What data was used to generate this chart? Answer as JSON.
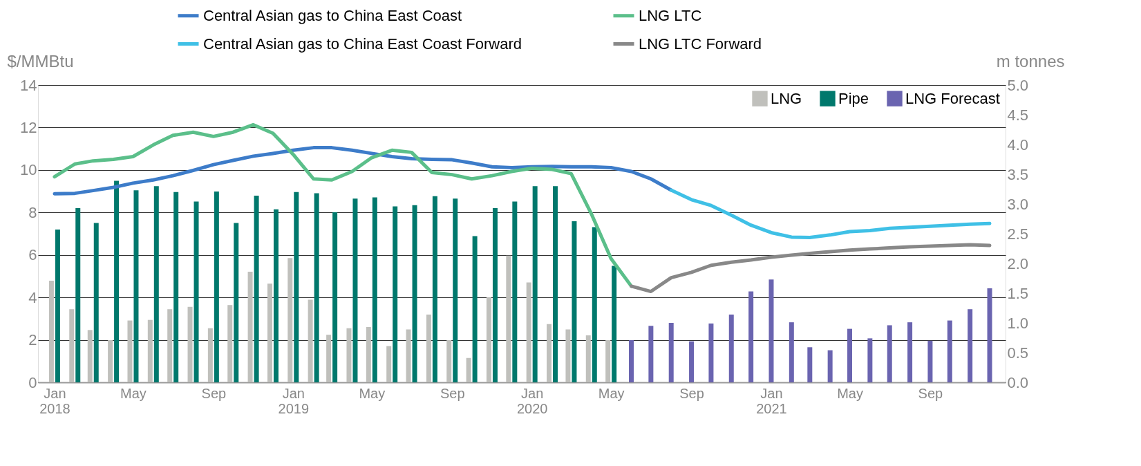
{
  "chart_data": {
    "type": "line",
    "ylabel": "$/MMBtu",
    "y2label": "m tonnes",
    "ylim": [
      0,
      14
    ],
    "yticks": [
      0,
      2,
      4,
      6,
      8,
      10,
      12,
      14
    ],
    "y2lim": [
      0,
      5
    ],
    "y2ticks": [
      {
        "value": 0,
        "label": "0.0"
      },
      {
        "value": 0.5,
        "label": "0.5"
      },
      {
        "value": 1,
        "label": "1.0"
      },
      {
        "value": 1.5,
        "label": "1.5"
      },
      {
        "value": 2,
        "label": "2.0"
      },
      {
        "value": 2.5,
        "label": "2.5"
      },
      {
        "value": 3,
        "label": "3.0"
      },
      {
        "value": 3.5,
        "label": "3.5"
      },
      {
        "value": 4,
        "label": "4.0"
      },
      {
        "value": 4.5,
        "label": "4.5"
      },
      {
        "value": 5,
        "label": "5.0"
      }
    ],
    "xlim": [
      "2017-12-12",
      "2021-12-20"
    ],
    "xticks": [
      {
        "value": "2018-01",
        "label": "Jan 2018"
      },
      {
        "value": "2018-05",
        "label": "May"
      },
      {
        "value": "2018-09",
        "label": "Sep"
      },
      {
        "value": "2019-01",
        "label": "Jan 2019"
      },
      {
        "value": "2019-05",
        "label": "May"
      },
      {
        "value": "2019-09",
        "label": "Sep"
      },
      {
        "value": "2020-01",
        "label": "Jan 2020"
      },
      {
        "value": "2020-05",
        "label": "May"
      },
      {
        "value": "2020-09",
        "label": "Sep"
      },
      {
        "value": "2021-01",
        "label": "Jan 2021"
      },
      {
        "value": "2021-05",
        "label": "May"
      },
      {
        "value": "2021-09",
        "label": "Sep"
      }
    ],
    "grid": "y",
    "legend": "top",
    "line_style": "solid",
    "marker": "none",
    "series": [
      {
        "name": "LNG",
        "type": "bar",
        "axis": "y2",
        "color": "#c0c0bc",
        "x": [
          "2018-01",
          "2018-02",
          "2018-03",
          "2018-04",
          "2018-05",
          "2018-06",
          "2018-07",
          "2018-08",
          "2018-09",
          "2018-10",
          "2018-11",
          "2018-12",
          "2019-01",
          "2019-02",
          "2019-03",
          "2019-04",
          "2019-05",
          "2019-06",
          "2019-07",
          "2019-08",
          "2019-09",
          "2019-10",
          "2019-11",
          "2019-12",
          "2020-01",
          "2020-02",
          "2020-03",
          "2020-04",
          "2020-05"
        ],
        "values": [
          1.71,
          1.23,
          0.88,
          0.71,
          1.04,
          1.05,
          1.23,
          1.27,
          0.91,
          1.3,
          1.86,
          1.66,
          2.09,
          1.39,
          0.8,
          0.91,
          0.93,
          0.61,
          0.89,
          1.14,
          0.71,
          0.41,
          1.43,
          2.13,
          1.68,
          0.98,
          0.89,
          0.79,
          0.71
        ]
      },
      {
        "name": "Pipe",
        "type": "bar",
        "axis": "y2",
        "color": "#00786c",
        "x": [
          "2018-01",
          "2018-02",
          "2018-03",
          "2018-04",
          "2018-05",
          "2018-06",
          "2018-07",
          "2018-08",
          "2018-09",
          "2018-10",
          "2018-11",
          "2018-12",
          "2019-01",
          "2019-02",
          "2019-03",
          "2019-04",
          "2019-05",
          "2019-06",
          "2019-07",
          "2019-08",
          "2019-09",
          "2019-10",
          "2019-11",
          "2019-12",
          "2020-01",
          "2020-02",
          "2020-03",
          "2020-04",
          "2020-05"
        ],
        "values": [
          2.57,
          2.93,
          2.68,
          3.39,
          3.23,
          3.3,
          3.2,
          3.04,
          3.21,
          2.68,
          3.14,
          2.91,
          3.2,
          3.18,
          2.86,
          3.09,
          3.11,
          2.96,
          2.98,
          3.13,
          3.09,
          2.46,
          2.93,
          3.04,
          3.3,
          3.3,
          2.71,
          2.61,
          1.96
        ]
      },
      {
        "name": "LNG Forecast",
        "type": "bar",
        "axis": "y2",
        "color": "#6a64b0",
        "x": [
          "2020-06",
          "2020-07",
          "2020-08",
          "2020-09",
          "2020-10",
          "2020-11",
          "2020-12",
          "2021-01",
          "2021-02",
          "2021-03",
          "2021-04",
          "2021-05",
          "2021-06",
          "2021-07",
          "2021-08",
          "2021-09",
          "2021-10",
          "2021-11",
          "2021-12"
        ],
        "values": [
          0.71,
          0.95,
          1.0,
          0.69,
          0.99,
          1.14,
          1.53,
          1.73,
          1.01,
          0.59,
          0.54,
          0.9,
          0.74,
          0.96,
          1.01,
          0.7,
          1.04,
          1.23,
          1.58
        ]
      },
      {
        "name": "Central Asian gas to China East Coast",
        "color": "#3d7cc9",
        "x": [
          "2018-01",
          "2018-02",
          "2018-03",
          "2018-04",
          "2018-05",
          "2018-06",
          "2018-07",
          "2018-08",
          "2018-09",
          "2018-10",
          "2018-11",
          "2018-12",
          "2019-01",
          "2019-02",
          "2019-03",
          "2019-04",
          "2019-05",
          "2019-06",
          "2019-07",
          "2019-08",
          "2019-09",
          "2019-10",
          "2019-11",
          "2019-12",
          "2020-01",
          "2020-02",
          "2020-03",
          "2020-04",
          "2020-05",
          "2020-06",
          "2020-07",
          "2020-08"
        ],
        "values": [
          8.88,
          8.9,
          9.03,
          9.18,
          9.38,
          9.53,
          9.73,
          9.98,
          10.25,
          10.45,
          10.65,
          10.78,
          10.93,
          11.05,
          11.05,
          10.93,
          10.78,
          10.63,
          10.53,
          10.5,
          10.48,
          10.33,
          10.15,
          10.11,
          10.15,
          10.17,
          10.15,
          10.15,
          10.11,
          9.93,
          9.58,
          9.05
        ]
      },
      {
        "name": "LNG LTC",
        "color": "#5bbf8a",
        "x": [
          "2018-01",
          "2018-02",
          "2018-03",
          "2018-04",
          "2018-05",
          "2018-06",
          "2018-07",
          "2018-08",
          "2018-09",
          "2018-10",
          "2018-11",
          "2018-12",
          "2019-01",
          "2019-02",
          "2019-03",
          "2019-04",
          "2019-05",
          "2019-06",
          "2019-07",
          "2019-08",
          "2019-09",
          "2019-10",
          "2019-11",
          "2019-12",
          "2020-01",
          "2020-02",
          "2020-03",
          "2020-04",
          "2020-05",
          "2020-06"
        ],
        "values": [
          9.68,
          10.28,
          10.43,
          10.5,
          10.63,
          11.18,
          11.63,
          11.78,
          11.58,
          11.78,
          12.13,
          11.73,
          10.73,
          9.58,
          9.53,
          9.93,
          10.58,
          10.93,
          10.83,
          9.88,
          9.78,
          9.58,
          9.73,
          9.93,
          10.08,
          10.03,
          9.83,
          7.93,
          5.83,
          4.53
        ]
      },
      {
        "name": "Central Asian gas to China East Coast Forward",
        "color": "#3fc0e6",
        "x": [
          "2020-08",
          "2020-09",
          "2020-10",
          "2020-11",
          "2020-12",
          "2021-01",
          "2021-02",
          "2021-03",
          "2021-04",
          "2021-05",
          "2021-06",
          "2021-07",
          "2021-08",
          "2021-09",
          "2021-10",
          "2021-11",
          "2021-12"
        ],
        "values": [
          9.05,
          8.6,
          8.33,
          7.87,
          7.4,
          7.05,
          6.84,
          6.82,
          6.94,
          7.1,
          7.15,
          7.25,
          7.3,
          7.35,
          7.4,
          7.45,
          7.48
        ]
      },
      {
        "name": "LNG LTC Forward",
        "color": "#888888",
        "x": [
          "2020-06",
          "2020-07",
          "2020-08",
          "2020-09",
          "2020-10",
          "2020-11",
          "2020-12",
          "2021-01",
          "2021-02",
          "2021-03",
          "2021-04",
          "2021-05",
          "2021-06",
          "2021-07",
          "2021-08",
          "2021-09",
          "2021-10",
          "2021-11",
          "2021-12"
        ],
        "values": [
          4.53,
          4.28,
          4.93,
          5.18,
          5.51,
          5.66,
          5.76,
          5.89,
          5.99,
          6.07,
          6.15,
          6.23,
          6.28,
          6.33,
          6.38,
          6.41,
          6.45,
          6.48,
          6.45
        ]
      }
    ]
  }
}
